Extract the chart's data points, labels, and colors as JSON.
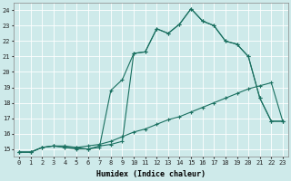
{
  "xlabel": "Humidex (Indice chaleur)",
  "bg_color": "#ceeaea",
  "grid_color": "#ffffff",
  "line_color": "#1a7060",
  "xlim": [
    -0.5,
    23.5
  ],
  "ylim": [
    14.5,
    24.5
  ],
  "xticks": [
    0,
    1,
    2,
    3,
    4,
    5,
    6,
    7,
    8,
    9,
    10,
    11,
    12,
    13,
    14,
    15,
    16,
    17,
    18,
    19,
    20,
    21,
    22,
    23
  ],
  "yticks": [
    15,
    16,
    17,
    18,
    19,
    20,
    21,
    22,
    23,
    24
  ],
  "line1_x": [
    0,
    1,
    2,
    3,
    4,
    5,
    6,
    7,
    8,
    9,
    10,
    11,
    12,
    13,
    14,
    15,
    16,
    17,
    18,
    19,
    20,
    21,
    22,
    23
  ],
  "line1_y": [
    14.8,
    14.8,
    15.1,
    15.2,
    15.1,
    15.1,
    15.2,
    15.3,
    15.5,
    15.8,
    16.1,
    16.3,
    16.6,
    16.9,
    17.1,
    17.4,
    17.7,
    18.0,
    18.3,
    18.6,
    18.9,
    19.1,
    19.3,
    16.8
  ],
  "line2_x": [
    0,
    1,
    2,
    3,
    4,
    5,
    6,
    7,
    8,
    9,
    10,
    11,
    12,
    13,
    14,
    15,
    16,
    17,
    18,
    19,
    20,
    21,
    22,
    23
  ],
  "line2_y": [
    14.8,
    14.8,
    15.1,
    15.2,
    15.1,
    15.0,
    15.0,
    15.2,
    15.3,
    15.5,
    21.2,
    21.3,
    22.8,
    22.5,
    23.1,
    24.1,
    23.3,
    23.0,
    22.0,
    21.8,
    21.0,
    18.3,
    16.8,
    16.8
  ],
  "line3_x": [
    0,
    1,
    2,
    3,
    4,
    5,
    6,
    7,
    8,
    9,
    10,
    11,
    12,
    13,
    14,
    15,
    16,
    17,
    18,
    19,
    20,
    21,
    22,
    23
  ],
  "line3_y": [
    14.8,
    14.8,
    15.1,
    15.2,
    15.2,
    15.1,
    15.0,
    15.1,
    18.8,
    19.5,
    21.2,
    21.3,
    22.8,
    22.5,
    23.1,
    24.1,
    23.3,
    23.0,
    22.0,
    21.8,
    21.0,
    18.3,
    16.8,
    16.8
  ]
}
